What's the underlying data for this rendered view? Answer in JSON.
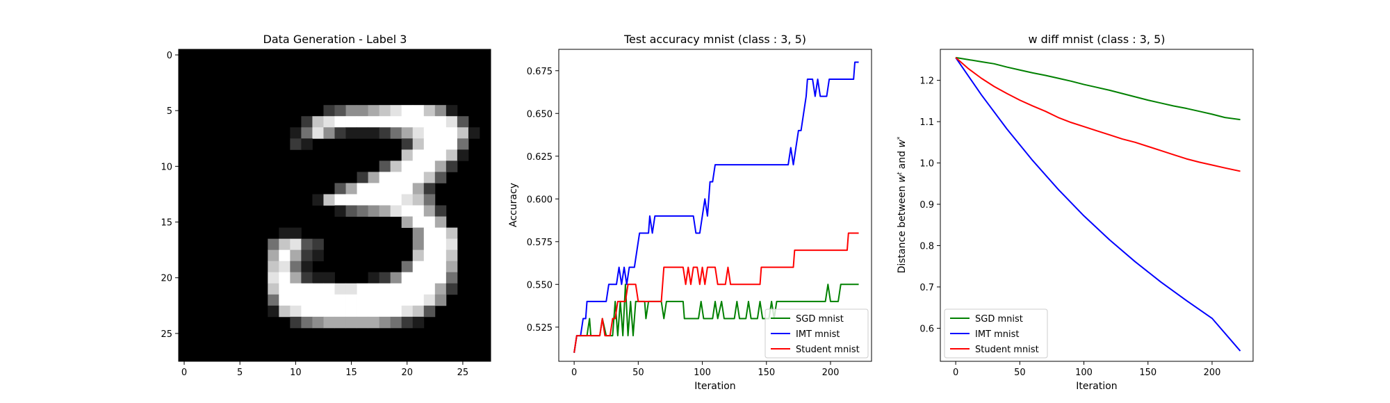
{
  "chart_data": [
    {
      "type": "heatmap",
      "title": "Data Generation - Label 3",
      "xlim": [
        -0.5,
        27.5
      ],
      "ylim": [
        27.5,
        -0.5
      ],
      "xticks": [
        0,
        5,
        10,
        15,
        20,
        25
      ],
      "yticks": [
        0,
        5,
        10,
        15,
        20,
        25
      ],
      "colormap": "gray",
      "pixel_rows": [
        "0000000000000000000000000000",
        "0000000000000000000000000000",
        "0000000000000000000000000000",
        "0000000000000000000000000000",
        "0000000000000000000000000000",
        "0000000000000235567899751000",
        "0000000000027899999999998300",
        "0000000000148521112468999710",
        "0000000000210000000027999400",
        "0000000000000000000079997100",
        "0000000000000000003799962000",
        "0000000000000000269999730000",
        "0000000000000036999996200000",
        "0000000000001799999987400000",
        "0000000000000013456899620000",
        "0000000000000000000069960000",
        "0000000001100000000005997000",
        "0000000047832000000005998000",
        "0000000069621000000007997000",
        "0000000078410000000049996000",
        "0000000089621100012599994000",
        "0000000079999988999999962000",
        "0000000049999999999999850000",
        "0000000017899999999987300000",
        "0000000000245666665421000000",
        "0000000000000000000000000000",
        "0000000000000000000000000000",
        "0000000000000000000000000000"
      ]
    },
    {
      "type": "line",
      "title": "Test accuracy mnist (class : 3, 5)",
      "xlabel": "Iteration",
      "ylabel": "Accuracy",
      "xlim": [
        -12,
        232
      ],
      "ylim": [
        0.505,
        0.6875
      ],
      "xticks": [
        0,
        50,
        100,
        150,
        200
      ],
      "yticks": [
        0.525,
        0.55,
        0.575,
        0.6,
        0.625,
        0.65,
        0.675
      ],
      "ytick_labels": [
        "0.525",
        "0.550",
        "0.575",
        "0.600",
        "0.625",
        "0.650",
        "0.675"
      ],
      "legend": "lower-right",
      "series": [
        {
          "name": "SGD mnist",
          "color": "#008000",
          "points": [
            [
              0,
              0.51
            ],
            [
              2,
              0.52
            ],
            [
              10,
              0.52
            ],
            [
              12,
              0.53
            ],
            [
              13,
              0.52
            ],
            [
              20,
              0.52
            ],
            [
              22,
              0.53
            ],
            [
              25,
              0.52
            ],
            [
              30,
              0.52
            ],
            [
              32,
              0.54
            ],
            [
              34,
              0.52
            ],
            [
              36,
              0.54
            ],
            [
              38,
              0.52
            ],
            [
              40,
              0.55
            ],
            [
              42,
              0.52
            ],
            [
              44,
              0.54
            ],
            [
              46,
              0.52
            ],
            [
              48,
              0.54
            ],
            [
              55,
              0.54
            ],
            [
              56,
              0.53
            ],
            [
              58,
              0.54
            ],
            [
              68,
              0.54
            ],
            [
              70,
              0.53
            ],
            [
              72,
              0.54
            ],
            [
              85,
              0.54
            ],
            [
              86,
              0.53
            ],
            [
              97,
              0.53
            ],
            [
              99,
              0.54
            ],
            [
              101,
              0.53
            ],
            [
              108,
              0.53
            ],
            [
              110,
              0.54
            ],
            [
              112,
              0.53
            ],
            [
              115,
              0.54
            ],
            [
              117,
              0.53
            ],
            [
              125,
              0.53
            ],
            [
              127,
              0.54
            ],
            [
              129,
              0.53
            ],
            [
              134,
              0.53
            ],
            [
              136,
              0.54
            ],
            [
              138,
              0.53
            ],
            [
              143,
              0.53
            ],
            [
              145,
              0.54
            ],
            [
              147,
              0.53
            ],
            [
              152,
              0.53
            ],
            [
              154,
              0.54
            ],
            [
              156,
              0.53
            ],
            [
              158,
              0.54
            ],
            [
              196,
              0.54
            ],
            [
              198,
              0.55
            ],
            [
              200,
              0.54
            ],
            [
              206,
              0.54
            ],
            [
              208,
              0.55
            ],
            [
              222,
              0.55
            ]
          ]
        },
        {
          "name": "IMT mnist",
          "color": "#0000ff",
          "points": [
            [
              0,
              0.51
            ],
            [
              2,
              0.52
            ],
            [
              5,
              0.52
            ],
            [
              7,
              0.53
            ],
            [
              9,
              0.53
            ],
            [
              10,
              0.54
            ],
            [
              25,
              0.54
            ],
            [
              27,
              0.55
            ],
            [
              33,
              0.55
            ],
            [
              35,
              0.56
            ],
            [
              37,
              0.55
            ],
            [
              39,
              0.56
            ],
            [
              41,
              0.55
            ],
            [
              43,
              0.56
            ],
            [
              47,
              0.56
            ],
            [
              49,
              0.57
            ],
            [
              51,
              0.58
            ],
            [
              58,
              0.58
            ],
            [
              59,
              0.59
            ],
            [
              61,
              0.58
            ],
            [
              63,
              0.59
            ],
            [
              93,
              0.59
            ],
            [
              95,
              0.58
            ],
            [
              98,
              0.58
            ],
            [
              100,
              0.59
            ],
            [
              102,
              0.6
            ],
            [
              104,
              0.59
            ],
            [
              105,
              0.6
            ],
            [
              106,
              0.61
            ],
            [
              108,
              0.61
            ],
            [
              110,
              0.62
            ],
            [
              167,
              0.62
            ],
            [
              169,
              0.63
            ],
            [
              171,
              0.62
            ],
            [
              173,
              0.63
            ],
            [
              175,
              0.64
            ],
            [
              177,
              0.64
            ],
            [
              179,
              0.65
            ],
            [
              181,
              0.66
            ],
            [
              182,
              0.67
            ],
            [
              186,
              0.67
            ],
            [
              188,
              0.66
            ],
            [
              190,
              0.67
            ],
            [
              192,
              0.66
            ],
            [
              197,
              0.66
            ],
            [
              199,
              0.67
            ],
            [
              218,
              0.67
            ],
            [
              219,
              0.68
            ],
            [
              222,
              0.68
            ]
          ]
        },
        {
          "name": "Student mnist",
          "color": "#ff0000",
          "points": [
            [
              0,
              0.51
            ],
            [
              2,
              0.52
            ],
            [
              20,
              0.52
            ],
            [
              22,
              0.53
            ],
            [
              24,
              0.52
            ],
            [
              28,
              0.52
            ],
            [
              30,
              0.53
            ],
            [
              32,
              0.53
            ],
            [
              34,
              0.54
            ],
            [
              40,
              0.54
            ],
            [
              42,
              0.55
            ],
            [
              48,
              0.55
            ],
            [
              50,
              0.54
            ],
            [
              68,
              0.54
            ],
            [
              70,
              0.56
            ],
            [
              85,
              0.56
            ],
            [
              87,
              0.55
            ],
            [
              89,
              0.56
            ],
            [
              91,
              0.55
            ],
            [
              93,
              0.56
            ],
            [
              96,
              0.56
            ],
            [
              98,
              0.55
            ],
            [
              100,
              0.56
            ],
            [
              102,
              0.55
            ],
            [
              104,
              0.56
            ],
            [
              110,
              0.56
            ],
            [
              112,
              0.55
            ],
            [
              118,
              0.55
            ],
            [
              120,
              0.56
            ],
            [
              122,
              0.55
            ],
            [
              145,
              0.55
            ],
            [
              146,
              0.56
            ],
            [
              171,
              0.56
            ],
            [
              172,
              0.57
            ],
            [
              213,
              0.57
            ],
            [
              214,
              0.58
            ],
            [
              222,
              0.58
            ]
          ]
        }
      ]
    },
    {
      "type": "line",
      "title": "w diff mnist (class : 3, 5)",
      "xlabel": "Iteration",
      "ylabel": "Distance between w^t and w^*",
      "ylabel_parts": [
        "Distance between ",
        "w",
        "t",
        " and ",
        "w",
        "*"
      ],
      "xlim": [
        -12,
        232
      ],
      "ylim": [
        0.52,
        1.275
      ],
      "xticks": [
        0,
        50,
        100,
        150,
        200
      ],
      "yticks": [
        0.6,
        0.7,
        0.8,
        0.9,
        1.0,
        1.1,
        1.2
      ],
      "ytick_labels": [
        "0.6",
        "0.7",
        "0.8",
        "0.9",
        "1.0",
        "1.1",
        "1.2"
      ],
      "legend": "lower-left",
      "series": [
        {
          "name": "SGD mnist",
          "color": "#008000",
          "points": [
            [
              0,
              1.255
            ],
            [
              10,
              1.25
            ],
            [
              20,
              1.245
            ],
            [
              30,
              1.24
            ],
            [
              40,
              1.232
            ],
            [
              50,
              1.225
            ],
            [
              60,
              1.218
            ],
            [
              70,
              1.212
            ],
            [
              80,
              1.205
            ],
            [
              90,
              1.198
            ],
            [
              100,
              1.19
            ],
            [
              110,
              1.183
            ],
            [
              120,
              1.176
            ],
            [
              130,
              1.168
            ],
            [
              140,
              1.16
            ],
            [
              150,
              1.152
            ],
            [
              160,
              1.145
            ],
            [
              170,
              1.138
            ],
            [
              180,
              1.132
            ],
            [
              190,
              1.125
            ],
            [
              200,
              1.118
            ],
            [
              210,
              1.11
            ],
            [
              222,
              1.105
            ]
          ]
        },
        {
          "name": "IMT mnist",
          "color": "#0000ff",
          "points": [
            [
              0,
              1.255
            ],
            [
              20,
              1.165
            ],
            [
              40,
              1.082
            ],
            [
              60,
              1.006
            ],
            [
              80,
              0.936
            ],
            [
              100,
              0.872
            ],
            [
              120,
              0.814
            ],
            [
              140,
              0.761
            ],
            [
              160,
              0.712
            ],
            [
              180,
              0.667
            ],
            [
              200,
              0.624
            ],
            [
              222,
              0.545
            ]
          ]
        },
        {
          "name": "Student mnist",
          "color": "#ff0000",
          "points": [
            [
              0,
              1.255
            ],
            [
              10,
              1.228
            ],
            [
              20,
              1.205
            ],
            [
              30,
              1.185
            ],
            [
              40,
              1.168
            ],
            [
              50,
              1.152
            ],
            [
              60,
              1.138
            ],
            [
              70,
              1.125
            ],
            [
              80,
              1.11
            ],
            [
              90,
              1.098
            ],
            [
              100,
              1.088
            ],
            [
              110,
              1.078
            ],
            [
              120,
              1.068
            ],
            [
              130,
              1.058
            ],
            [
              140,
              1.05
            ],
            [
              150,
              1.04
            ],
            [
              160,
              1.03
            ],
            [
              170,
              1.02
            ],
            [
              180,
              1.01
            ],
            [
              190,
              1.002
            ],
            [
              200,
              0.995
            ],
            [
              210,
              0.988
            ],
            [
              222,
              0.98
            ]
          ]
        }
      ]
    }
  ]
}
